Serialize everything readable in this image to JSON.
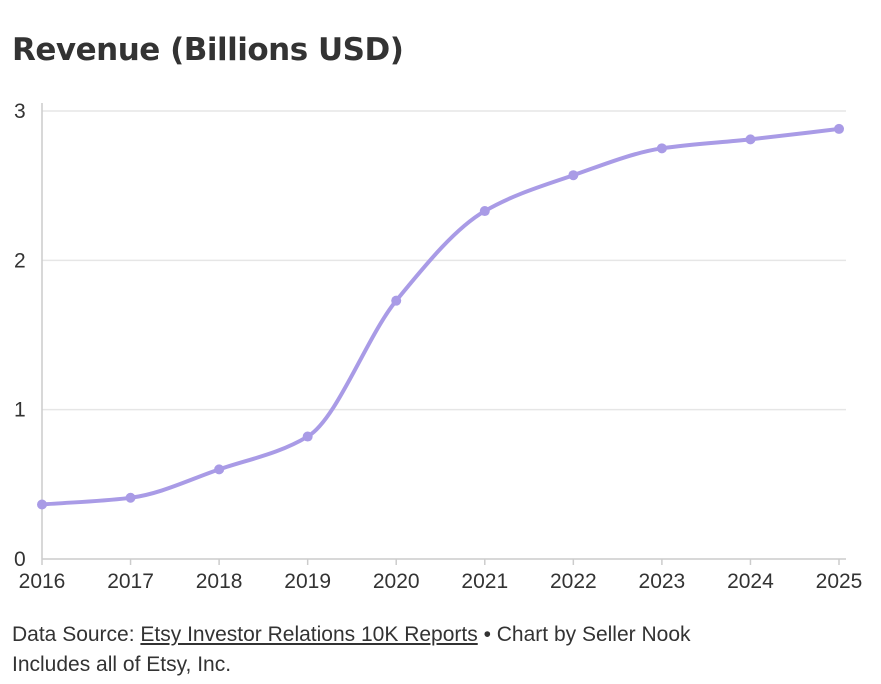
{
  "title": "Revenue (Billions USD)",
  "footer": {
    "source_prefix": "Data Source: ",
    "source_link": "Etsy Investor Relations 10K Reports",
    "bullet_text": " • Chart by Seller Nook",
    "note": "Includes all of Etsy, Inc."
  },
  "colors": {
    "line": "#a99be6",
    "grid": "#e6e6e6",
    "axis": "#cccccc",
    "text": "#333333"
  },
  "chart_data": {
    "type": "line",
    "title": "Revenue (Billions USD)",
    "xlabel": "",
    "ylabel": "",
    "x": [
      "2016",
      "2017",
      "2018",
      "2019",
      "2020",
      "2021",
      "2022",
      "2023",
      "2024",
      "2025"
    ],
    "series": [
      {
        "values": [
          0.365,
          0.41,
          0.6,
          0.82,
          1.73,
          2.33,
          2.57,
          2.75,
          2.81,
          2.88
        ]
      }
    ],
    "ylim": [
      0,
      3
    ],
    "yticks": [
      "0",
      "1",
      "2",
      "3"
    ],
    "grid": true,
    "curve": "smooth",
    "markers": true
  }
}
